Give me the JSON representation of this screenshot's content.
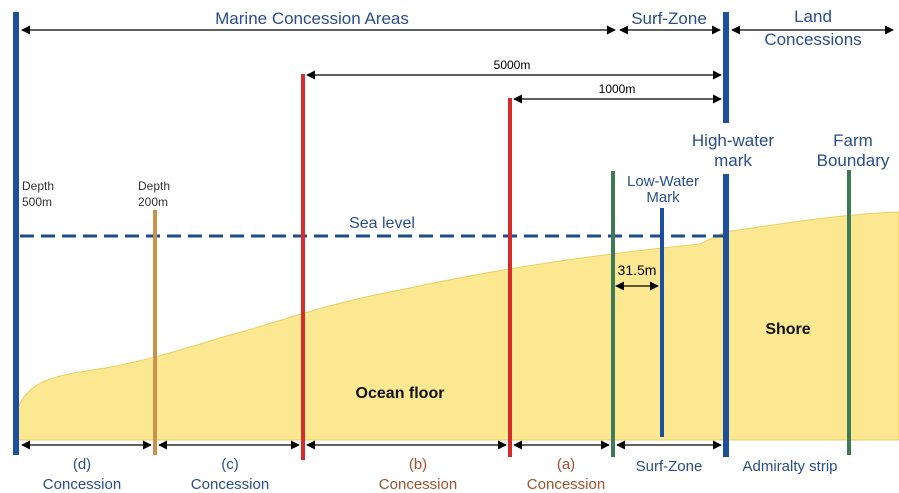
{
  "top": {
    "marine_concession_areas": "Marine Concession Areas",
    "surf_zone": "Surf-Zone",
    "land_concessions_line1": "Land",
    "land_concessions_line2": "Concessions"
  },
  "distances": {
    "d5000": "5000m",
    "d1000": "1000m",
    "d31_5": "31.5m"
  },
  "marks": {
    "high_water_line1": "High-water",
    "high_water_line2": "mark",
    "farm_boundary_line1": "Farm",
    "farm_boundary_line2": "Boundary",
    "low_water_line1": "Low-Water",
    "low_water_line2": "Mark",
    "depth500_line1": "Depth",
    "depth500_line2": "500m",
    "depth200_line1": "Depth",
    "depth200_line2": "200m",
    "sea_level": "Sea level"
  },
  "areas": {
    "ocean_floor": "Ocean floor",
    "shore": "Shore"
  },
  "bottom": {
    "d_letter": "(d)",
    "c_letter": "(c)",
    "b_letter": "(b)",
    "a_letter": "(a)",
    "concession": "Concession",
    "surf_zone": "Surf-Zone",
    "admiralty_strip": "Admiralty strip"
  },
  "colors": {
    "land": "#fbe891",
    "dark_blue": "#1d4f9c",
    "red": "#d62b2b",
    "green": "#3f7a57",
    "tan": "#c8934e",
    "sea_level": "#1e4c8a",
    "label_blue": "#2b4d8a",
    "label_brown": "#a0522d"
  }
}
